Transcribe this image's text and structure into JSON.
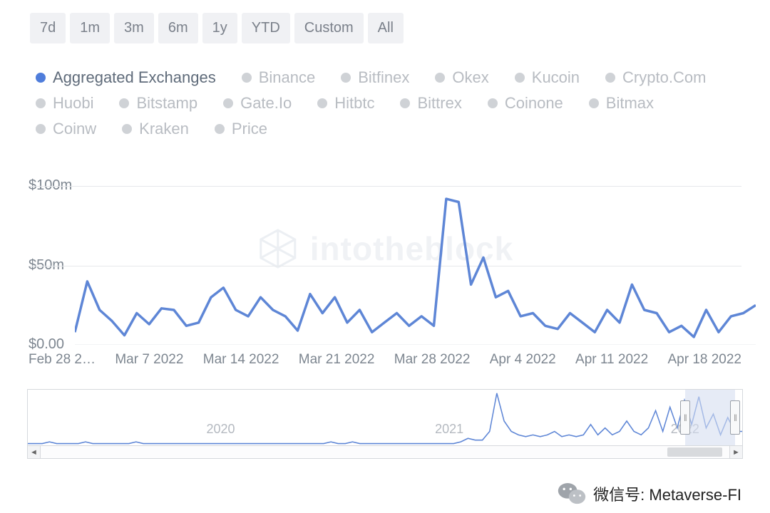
{
  "timeRanges": [
    "7d",
    "1m",
    "3m",
    "6m",
    "1y",
    "YTD",
    "Custom",
    "All"
  ],
  "legend": {
    "active": "Aggregated Exchanges",
    "items": [
      "Aggregated Exchanges",
      "Binance",
      "Bitfinex",
      "Okex",
      "Kucoin",
      "Crypto.Com",
      "Huobi",
      "Bitstamp",
      "Gate.Io",
      "Hitbtc",
      "Bittrex",
      "Coinone",
      "Bitmax",
      "Coinw",
      "Kraken",
      "Price"
    ]
  },
  "watermark": "intotheblock",
  "chart": {
    "type": "line",
    "series_color": "#5e86d6",
    "line_width": 3.5,
    "background_color": "#ffffff",
    "grid_color": "#e6e8eb",
    "y_ticks": [
      {
        "label": "$100m",
        "value": 100
      },
      {
        "label": "$50m",
        "value": 50
      },
      {
        "label": "$0.00",
        "value": 0
      }
    ],
    "ylim": [
      0,
      110
    ],
    "x_labels": [
      "Feb 28 2…",
      "Mar 7 2022",
      "Mar 14 2022",
      "Mar 21 2022",
      "Mar 28 2022",
      "Apr 4 2022",
      "Apr 11 2022",
      "Apr 18 2022"
    ],
    "values": [
      8,
      40,
      22,
      15,
      6,
      20,
      13,
      23,
      22,
      12,
      14,
      30,
      36,
      22,
      18,
      30,
      22,
      18,
      9,
      32,
      20,
      30,
      14,
      22,
      8,
      14,
      20,
      12,
      18,
      12,
      92,
      90,
      38,
      55,
      30,
      34,
      18,
      20,
      12,
      10,
      20,
      14,
      8,
      22,
      14,
      38,
      22,
      20,
      8,
      12,
      5,
      22,
      8,
      18,
      20,
      25
    ]
  },
  "mini": {
    "years": [
      {
        "label": "2020",
        "pos_pct": 25
      },
      {
        "label": "2021",
        "pos_pct": 57
      },
      {
        "label": "2022",
        "pos_pct": 90
      }
    ],
    "line_color": "#5e86d6",
    "selection": {
      "start_pct": 92,
      "end_pct": 99
    },
    "values": [
      1,
      1,
      1,
      2,
      1,
      1,
      1,
      1,
      2,
      1,
      1,
      1,
      1,
      1,
      1,
      2,
      1,
      1,
      1,
      1,
      1,
      1,
      1,
      1,
      1,
      1,
      1,
      1,
      1,
      1,
      1,
      1,
      1,
      1,
      1,
      1,
      1,
      1,
      1,
      1,
      1,
      1,
      2,
      1,
      1,
      2,
      1,
      1,
      1,
      1,
      1,
      1,
      1,
      1,
      1,
      1,
      1,
      1,
      1,
      1,
      2,
      4,
      3,
      3,
      8,
      30,
      14,
      8,
      6,
      5,
      6,
      5,
      6,
      8,
      5,
      6,
      5,
      6,
      12,
      6,
      10,
      6,
      8,
      14,
      8,
      6,
      10,
      20,
      8,
      22,
      10,
      26,
      12,
      28,
      10,
      18,
      6,
      16,
      8,
      8
    ],
    "ylim": [
      0,
      32
    ]
  },
  "scrollbar": {
    "thumb_start_pct": 91,
    "thumb_width_pct": 8
  },
  "badge": {
    "prefix": "微信号:",
    "id": "Metaverse-FI"
  },
  "colors": {
    "button_bg": "#f0f1f4",
    "button_text": "#7a808a",
    "legend_inactive": "#b8bcc2",
    "legend_dot_inactive": "#cfd2d6",
    "active_blue": "#4f7ddb",
    "axis_text": "#7d8690"
  }
}
